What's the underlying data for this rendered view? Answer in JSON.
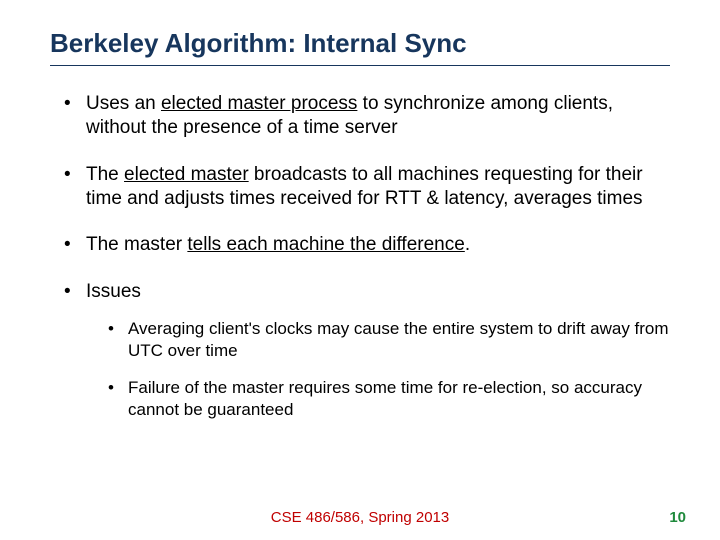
{
  "title": "Berkeley Algorithm: Internal Sync",
  "bullets": {
    "b1_pre": "Uses an ",
    "b1_u": "elected master process",
    "b1_post": " to synchronize among clients, without the presence of a time server",
    "b2_pre": "The ",
    "b2_u": "elected master",
    "b2_post": " broadcasts to all machines requesting for their time and adjusts times received for RTT & latency, averages times",
    "b3_pre": "The master ",
    "b3_u": "tells each machine the difference",
    "b3_post": ".",
    "b4": "Issues",
    "sub1": "Averaging client's clocks may cause the entire system to drift away from UTC over time",
    "sub2": "Failure of the master requires some time for re-election, so accuracy cannot be guaranteed"
  },
  "footer": "CSE 486/586, Spring 2013",
  "page_number": "10",
  "colors": {
    "title": "#17365d",
    "footer": "#c00000",
    "page_num": "#1f8a3c",
    "text": "#000000",
    "background": "#ffffff"
  }
}
